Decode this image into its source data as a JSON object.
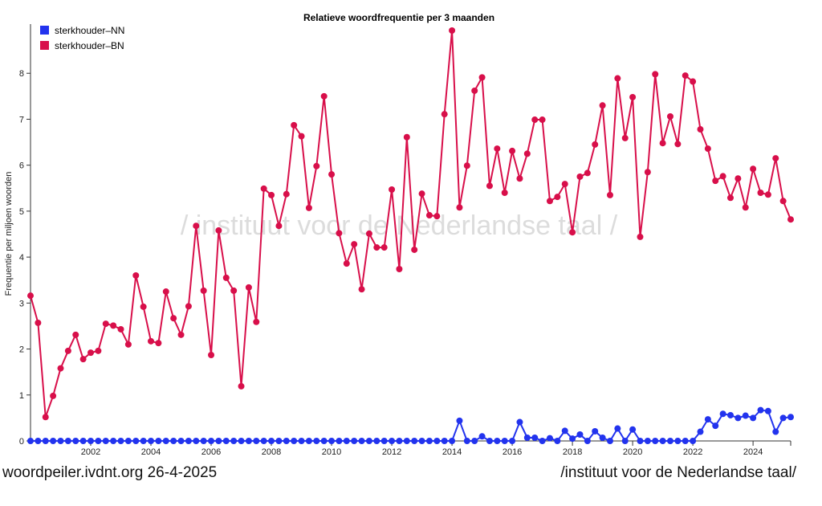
{
  "chart_data": {
    "type": "line",
    "title": "Relatieve woordfrequentie per 3 maanden",
    "xlabel": "",
    "ylabel": "Frequentie per miljoen woorden",
    "watermark": "/ instituut voor de Nederlandse taal /",
    "x_start": 2000.0,
    "x_step": 0.25,
    "xlim": [
      2000,
      2025.25
    ],
    "ylim": [
      0,
      9
    ],
    "x_ticks": [
      "2002",
      "2004",
      "2006",
      "2008",
      "2010",
      "2012",
      "2014",
      "2016",
      "2018",
      "2020",
      "2022",
      "2024"
    ],
    "y_ticks": [
      "0",
      "1",
      "2",
      "3",
      "4",
      "5",
      "6",
      "7",
      "8"
    ],
    "legend_position": "top-left",
    "series": [
      {
        "name": "sterkhouder–NN",
        "color": "#2233ee",
        "values": [
          0,
          0,
          0,
          0,
          0,
          0,
          0,
          0,
          0,
          0,
          0,
          0,
          0,
          0,
          0,
          0,
          0,
          0,
          0,
          0,
          0,
          0,
          0,
          0,
          0,
          0,
          0,
          0,
          0,
          0,
          0,
          0,
          0,
          0,
          0,
          0,
          0,
          0,
          0,
          0,
          0,
          0,
          0,
          0,
          0,
          0,
          0,
          0,
          0,
          0,
          0,
          0,
          0,
          0,
          0,
          0,
          0,
          0.44,
          0,
          0,
          0.1,
          0,
          0,
          0,
          0,
          0.41,
          0.07,
          0.07,
          0,
          0.06,
          0,
          0.22,
          0.05,
          0.14,
          0,
          0.21,
          0.07,
          0,
          0.27,
          0,
          0.25,
          0,
          0,
          0,
          0,
          0,
          0,
          0,
          0,
          0.2,
          0.47,
          0.33,
          0.59,
          0.56,
          0.5,
          0.55,
          0.5,
          0.67,
          0.65,
          0.2,
          0.5,
          0.52
        ]
      },
      {
        "name": "sterkhouder–BN",
        "color": "#d80f4a",
        "values": [
          3.16,
          2.57,
          0.52,
          0.98,
          1.58,
          1.96,
          2.31,
          1.78,
          1.92,
          1.96,
          2.55,
          2.51,
          2.43,
          2.1,
          3.6,
          2.92,
          2.17,
          2.13,
          3.25,
          2.67,
          2.31,
          2.93,
          4.68,
          3.27,
          1.87,
          4.58,
          3.55,
          3.27,
          1.19,
          3.34,
          2.59,
          5.49,
          5.35,
          4.68,
          5.37,
          6.87,
          6.63,
          5.07,
          5.98,
          7.5,
          5.8,
          4.52,
          3.86,
          4.28,
          3.3,
          4.51,
          4.21,
          4.21,
          5.47,
          3.74,
          6.61,
          4.16,
          5.38,
          4.91,
          4.89,
          7.11,
          8.93,
          5.08,
          5.99,
          7.62,
          7.91,
          5.55,
          6.36,
          5.4,
          6.31,
          5.71,
          6.25,
          6.99,
          6.99,
          5.22,
          5.31,
          5.59,
          4.54,
          5.75,
          5.83,
          6.45,
          7.3,
          5.35,
          7.89,
          6.59,
          7.48,
          4.44,
          5.85,
          7.98,
          6.48,
          7.06,
          6.46,
          7.95,
          7.82,
          6.78,
          6.36,
          5.66,
          5.76,
          5.29,
          5.71,
          5.08,
          5.92,
          5.4,
          5.36,
          6.15,
          5.22,
          4.82
        ]
      }
    ]
  },
  "footer": {
    "left": "woordpeiler.ivdnt.org 26-4-2025",
    "right": "/instituut voor de Nederlandse taal/"
  }
}
